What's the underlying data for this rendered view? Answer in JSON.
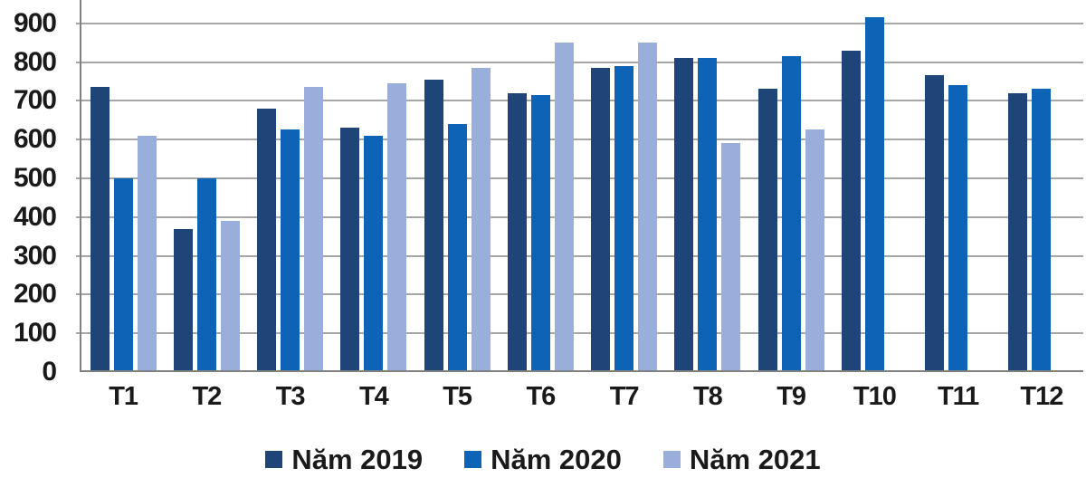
{
  "chart_data": {
    "type": "bar",
    "title": "",
    "xlabel": "",
    "ylabel": "",
    "categories": [
      "T1",
      "T2",
      "T3",
      "T4",
      "T5",
      "T6",
      "T7",
      "T8",
      "T9",
      "T10",
      "T11",
      "T12"
    ],
    "series": [
      {
        "name": "Năm 2019",
        "color": "#1F4477",
        "values": [
          735,
          370,
          680,
          630,
          755,
          720,
          785,
          810,
          730,
          830,
          765,
          720
        ]
      },
      {
        "name": "Năm 2020",
        "color": "#0D63B6",
        "values": [
          500,
          500,
          625,
          610,
          640,
          715,
          790,
          810,
          815,
          915,
          740,
          730
        ]
      },
      {
        "name": "Năm 2021",
        "color": "#9AAEDB",
        "values": [
          610,
          390,
          735,
          745,
          785,
          850,
          850,
          590,
          625,
          null,
          null,
          null
        ]
      }
    ],
    "yticks": [
      0,
      100,
      200,
      300,
      400,
      500,
      600,
      700,
      800,
      900
    ],
    "ylim": [
      0,
      960
    ],
    "grid": true,
    "legend_position": "bottom",
    "colors": {
      "background": "#ffffff",
      "gridline": "#a6a6a6",
      "axis": "#808080",
      "text": "#1a1a1a"
    }
  }
}
